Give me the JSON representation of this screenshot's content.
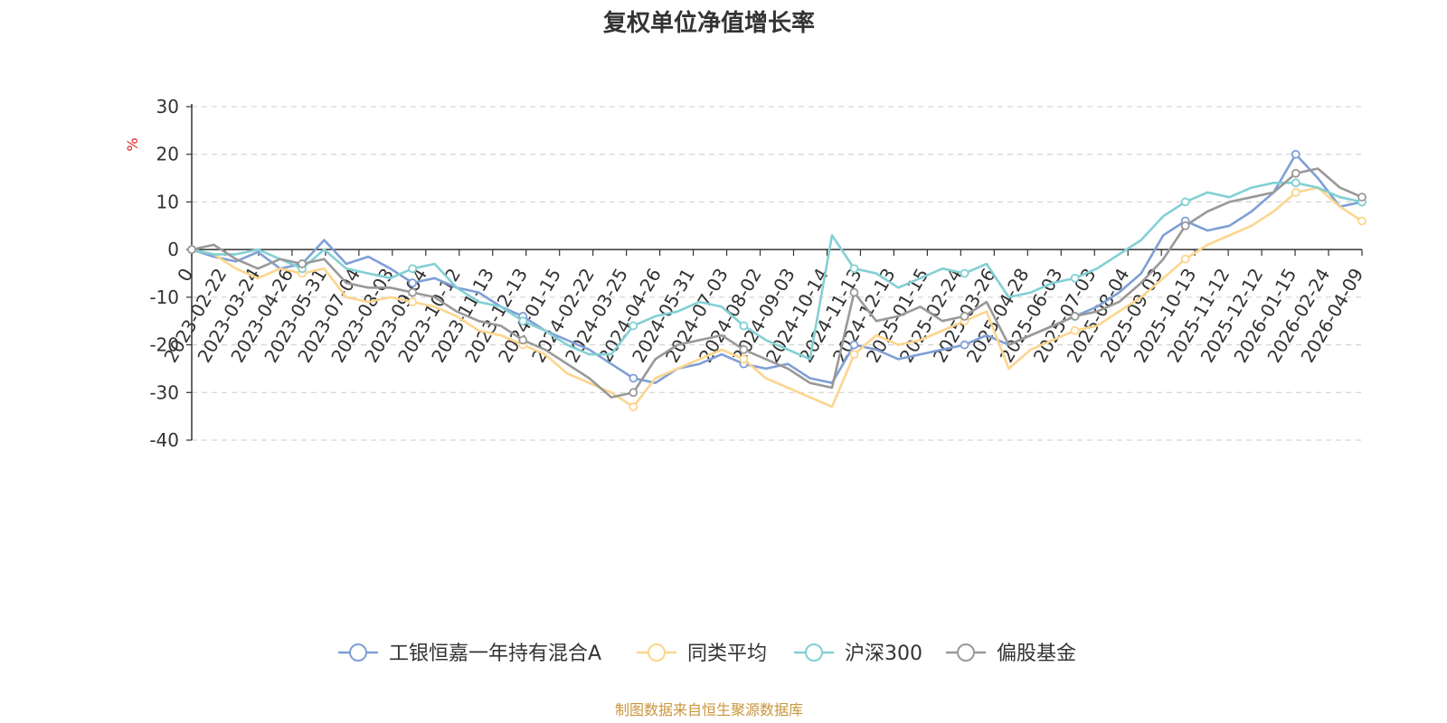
{
  "chart_data": {
    "type": "line",
    "title": "复权单位净值增长率",
    "ylabel": "%",
    "ylim": [
      -40,
      30
    ],
    "yticks": [
      30,
      20,
      10,
      0,
      -10,
      -20,
      -30,
      -40
    ],
    "x_first_label": "0",
    "xtick_labels": [
      "2023-02-22",
      "2023-03-24",
      "2023-04-26",
      "2023-05-31",
      "2023-07-04",
      "2023-08-03",
      "2023-09-04",
      "2023-10-12",
      "2023-11-13",
      "2023-12-13",
      "2024-01-15",
      "2024-02-22",
      "2024-03-25",
      "2024-04-26",
      "2024-05-31",
      "2024-07-03",
      "2024-08-02",
      "2024-09-03",
      "2024-10-14",
      "2024-11-13",
      "2024-12-13",
      "2025-01-15",
      "2025-02-24",
      "2025-03-26",
      "2025-04-28",
      "2025-06-03",
      "2025-07-03",
      "2025-08-04",
      "2025-09-03",
      "2025-10-13",
      "2025-11-12",
      "2025-12-12",
      "2026-01-15",
      "2026-02-24",
      "2026-04-09"
    ],
    "grid": true,
    "legend_position": "bottom",
    "series": [
      {
        "name": "工银恒嘉一年持有混合A",
        "color": "#7f9fd6",
        "values": [
          0,
          -1.5,
          -2.5,
          -0.5,
          -4,
          -3,
          2,
          -3,
          -1.5,
          -4,
          -7,
          -6,
          -8,
          -9,
          -12,
          -14,
          -17,
          -19,
          -21,
          -24,
          -27,
          -28,
          -25,
          -24,
          -22,
          -24,
          -25,
          -24,
          -27,
          -28,
          -20,
          -21,
          -23,
          -22,
          -21,
          -20,
          -18,
          -20,
          -18,
          -16,
          -14,
          -12,
          -9,
          -5,
          3,
          6,
          4,
          5,
          8,
          12,
          20,
          15,
          9,
          10
        ]
      },
      {
        "name": "同类平均",
        "color": "#fcd58e",
        "values": [
          0,
          -1,
          -4,
          -6,
          -4,
          -5,
          -4,
          -10,
          -11,
          -10,
          -11,
          -12,
          -14,
          -17,
          -18,
          -20,
          -22,
          -26,
          -28,
          -30,
          -33,
          -27,
          -25,
          -23,
          -21,
          -23,
          -27,
          -29,
          -31,
          -33,
          -22,
          -18,
          -20,
          -19,
          -17,
          -15,
          -13,
          -25,
          -21,
          -19,
          -17,
          -16,
          -13,
          -10,
          -6,
          -2,
          1,
          3,
          5,
          8,
          12,
          13,
          9,
          6
        ]
      },
      {
        "name": "沪深300",
        "color": "#82d0d4",
        "values": [
          0,
          -1,
          -1,
          0,
          -2,
          -4,
          0,
          -4,
          -5,
          -6,
          -4,
          -3,
          -8,
          -11,
          -12,
          -15,
          -17,
          -20,
          -22,
          -22,
          -16,
          -14,
          -13,
          -11,
          -12,
          -16,
          -19,
          -21,
          -23,
          3,
          -4,
          -5,
          -8,
          -6,
          -4,
          -5,
          -3,
          -10,
          -9,
          -7,
          -6,
          -4,
          -1,
          2,
          7,
          10,
          12,
          11,
          13,
          14,
          14,
          13,
          11,
          10
        ]
      },
      {
        "name": "偏股基金",
        "color": "#999999",
        "values": [
          0,
          1,
          -2,
          -4,
          -2,
          -3,
          -2,
          -7,
          -8,
          -8,
          -9,
          -10,
          -13,
          -15,
          -16,
          -19,
          -21,
          -24,
          -27,
          -31,
          -30,
          -23,
          -20,
          -19,
          -18,
          -21,
          -23,
          -25,
          -28,
          -29,
          -9,
          -15,
          -14,
          -12,
          -15,
          -14,
          -11,
          -20,
          -18,
          -16,
          -14,
          -13,
          -11,
          -7,
          -2,
          5,
          8,
          10,
          11,
          12,
          16,
          17,
          13,
          11
        ]
      }
    ]
  },
  "source_note": "制图数据来自恒生聚源数据库"
}
